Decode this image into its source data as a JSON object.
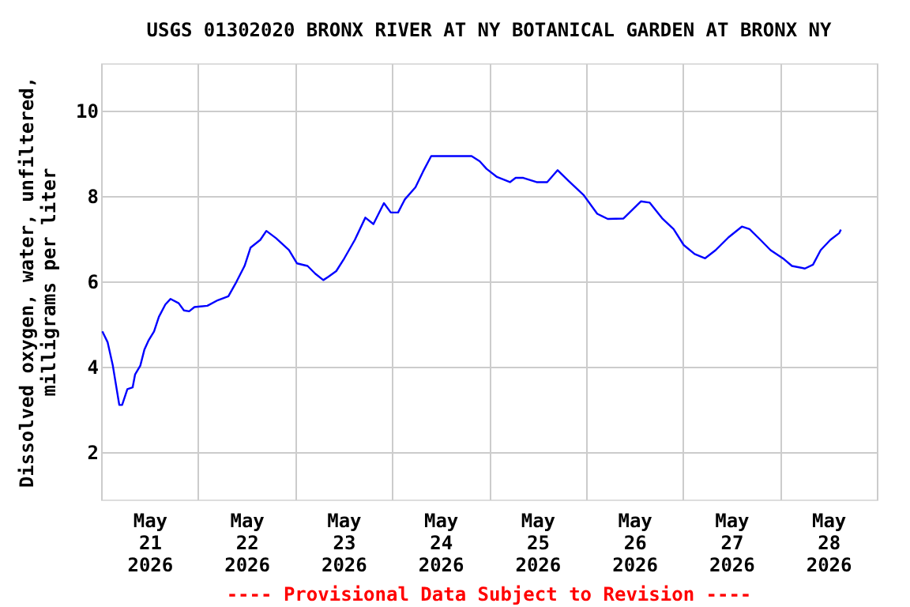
{
  "chart_data": {
    "type": "line",
    "title": "USGS 01302020 BRONX RIVER AT NY BOTANICAL GARDEN AT BRONX NY",
    "ylabel": "Dissolved oxygen, water, unfiltered,\nmilligrams per liter",
    "annotations": [
      "---- Provisional Data Subject to Revision ----"
    ],
    "xlim": [
      "2026-05-21T00:00",
      "2026-05-29T00:00"
    ],
    "xticks": [
      {
        "value": "2026-05-21T00:00",
        "label": null
      },
      {
        "value": "2026-05-21T12:00",
        "label": "May\n21\n2026"
      },
      {
        "value": "2026-05-22T00:00",
        "label": null
      },
      {
        "value": "2026-05-22T12:00",
        "label": "May\n22\n2026"
      },
      {
        "value": "2026-05-23T00:00",
        "label": null
      },
      {
        "value": "2026-05-23T12:00",
        "label": "May\n23\n2026"
      },
      {
        "value": "2026-05-24T00:00",
        "label": null
      },
      {
        "value": "2026-05-24T12:00",
        "label": "May\n24\n2026"
      },
      {
        "value": "2026-05-25T00:00",
        "label": null
      },
      {
        "value": "2026-05-25T12:00",
        "label": "May\n25\n2026"
      },
      {
        "value": "2026-05-26T00:00",
        "label": null
      },
      {
        "value": "2026-05-26T12:00",
        "label": "May\n26\n2026"
      },
      {
        "value": "2026-05-27T00:00",
        "label": null
      },
      {
        "value": "2026-05-27T12:00",
        "label": "May\n27\n2026"
      },
      {
        "value": "2026-05-28T00:00",
        "label": null
      },
      {
        "value": "2026-05-28T12:00",
        "label": "May\n28\n2026"
      },
      {
        "value": "2026-05-29T00:00",
        "label": null
      }
    ],
    "ylim": [
      0.9,
      11.1
    ],
    "yticks": [
      2,
      4,
      6,
      8,
      10
    ],
    "grid": true,
    "series": [
      {
        "color": "#0000ff",
        "x": [
          "2026-05-21T00:18",
          "2026-05-21T01:36",
          "2026-05-21T02:54",
          "2026-05-21T04:30",
          "2026-05-21T05:12",
          "2026-05-21T06:30",
          "2026-05-21T07:48",
          "2026-05-21T08:24",
          "2026-05-21T09:42",
          "2026-05-21T10:42",
          "2026-05-21T11:42",
          "2026-05-21T13:06",
          "2026-05-21T14:18",
          "2026-05-21T15:54",
          "2026-05-21T17:12",
          "2026-05-21T19:12",
          "2026-05-21T20:30",
          "2026-05-21T21:48",
          "2026-05-21T23:06",
          "2026-05-22T02:18",
          "2026-05-22T04:54",
          "2026-05-22T07:30",
          "2026-05-22T09:30",
          "2026-05-22T11:30",
          "2026-05-22T13:00",
          "2026-05-22T15:24",
          "2026-05-22T16:54",
          "2026-05-22T19:18",
          "2026-05-22T22:30",
          "2026-05-23T00:30",
          "2026-05-23T03:06",
          "2026-05-23T05:00",
          "2026-05-23T07:00",
          "2026-05-23T08:18",
          "2026-05-23T10:12",
          "2026-05-23T12:12",
          "2026-05-23T14:48",
          "2026-05-23T17:24",
          "2026-05-23T19:24",
          "2026-05-23T22:00",
          "2026-05-23T23:42",
          "2026-05-24T01:30",
          "2026-05-24T03:12",
          "2026-05-24T05:48",
          "2026-05-24T07:42",
          "2026-05-24T09:42",
          "2026-05-24T19:42",
          "2026-05-24T21:42",
          "2026-05-24T23:24",
          "2026-05-25T02:00",
          "2026-05-25T05:12",
          "2026-05-25T06:36",
          "2026-05-25T08:30",
          "2026-05-25T11:48",
          "2026-05-25T14:24",
          "2026-05-25T17:00",
          "2026-05-25T19:36",
          "2026-05-25T23:30",
          "2026-05-26T02:48",
          "2026-05-26T05:24",
          "2026-05-26T09:18",
          "2026-05-26T13:36",
          "2026-05-26T15:48",
          "2026-05-26T19:00",
          "2026-05-26T21:42",
          "2026-05-27T00:12",
          "2026-05-27T02:54",
          "2026-05-27T05:30",
          "2026-05-27T08:06",
          "2026-05-27T11:18",
          "2026-05-27T14:36",
          "2026-05-27T16:30",
          "2026-05-27T19:12",
          "2026-05-27T21:42",
          "2026-05-28T01:00",
          "2026-05-28T03:00",
          "2026-05-28T06:12",
          "2026-05-28T08:12",
          "2026-05-28T10:06",
          "2026-05-28T12:30",
          "2026-05-28T14:42",
          "2026-05-28T15:06"
        ],
        "values": [
          4.83,
          4.58,
          4.03,
          3.11,
          3.11,
          3.48,
          3.52,
          3.82,
          4.03,
          4.4,
          4.61,
          4.83,
          5.17,
          5.46,
          5.59,
          5.49,
          5.32,
          5.3,
          5.4,
          5.43,
          5.56,
          5.65,
          5.99,
          6.36,
          6.79,
          6.97,
          7.18,
          7.01,
          6.73,
          6.42,
          6.36,
          6.18,
          6.03,
          6.11,
          6.24,
          6.54,
          6.97,
          7.49,
          7.34,
          7.83,
          7.61,
          7.61,
          7.92,
          8.2,
          8.57,
          8.93,
          8.93,
          8.81,
          8.63,
          8.44,
          8.32,
          8.42,
          8.42,
          8.32,
          8.32,
          8.6,
          8.36,
          8.01,
          7.58,
          7.46,
          7.47,
          7.87,
          7.84,
          7.46,
          7.22,
          6.85,
          6.64,
          6.54,
          6.73,
          7.03,
          7.28,
          7.22,
          6.97,
          6.73,
          6.52,
          6.36,
          6.3,
          6.39,
          6.73,
          6.97,
          7.13,
          7.21
        ]
      }
    ]
  }
}
